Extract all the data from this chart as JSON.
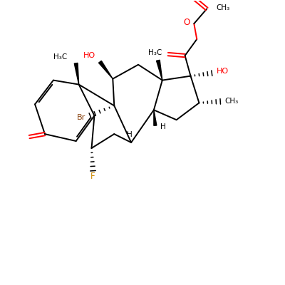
{
  "bg_color": "#ffffff",
  "bond_color": "#000000",
  "o_color": "#ff0000",
  "br_color": "#8b4513",
  "f_color": "#cc8800",
  "ho_color": "#ff0000",
  "lw": 1.4,
  "fig_size": [
    4.0,
    4.0
  ],
  "dpi": 100,
  "xlim": [
    0,
    10
  ],
  "ylim": [
    0,
    10
  ]
}
